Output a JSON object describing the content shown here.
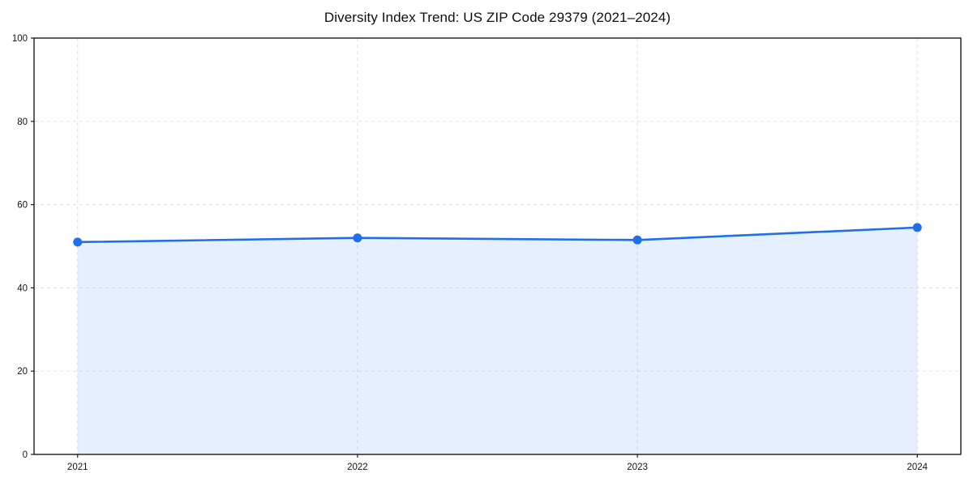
{
  "chart_data": {
    "type": "area",
    "title": "Diversity Index Trend: US ZIP Code 29379 (2021–2024)",
    "categories": [
      "2021",
      "2022",
      "2023",
      "2024"
    ],
    "series": [
      {
        "name": "Diversity Index",
        "values": [
          51,
          52,
          51.5,
          54.5
        ]
      }
    ],
    "xlabel": "",
    "ylabel": "",
    "ylim": [
      0,
      100
    ],
    "yticks": [
      0,
      20,
      40,
      60,
      80,
      100
    ],
    "grid": "dashed-both-axes",
    "legend": "none",
    "colors": {
      "line": "#1f6feb",
      "marker": "#1f6feb",
      "fill": "rgba(31,111,235,0.11)",
      "gridline": "#e0e0e0",
      "spine": "#1a1a1a",
      "tick_text": "#141414",
      "background": "#ffffff"
    }
  }
}
